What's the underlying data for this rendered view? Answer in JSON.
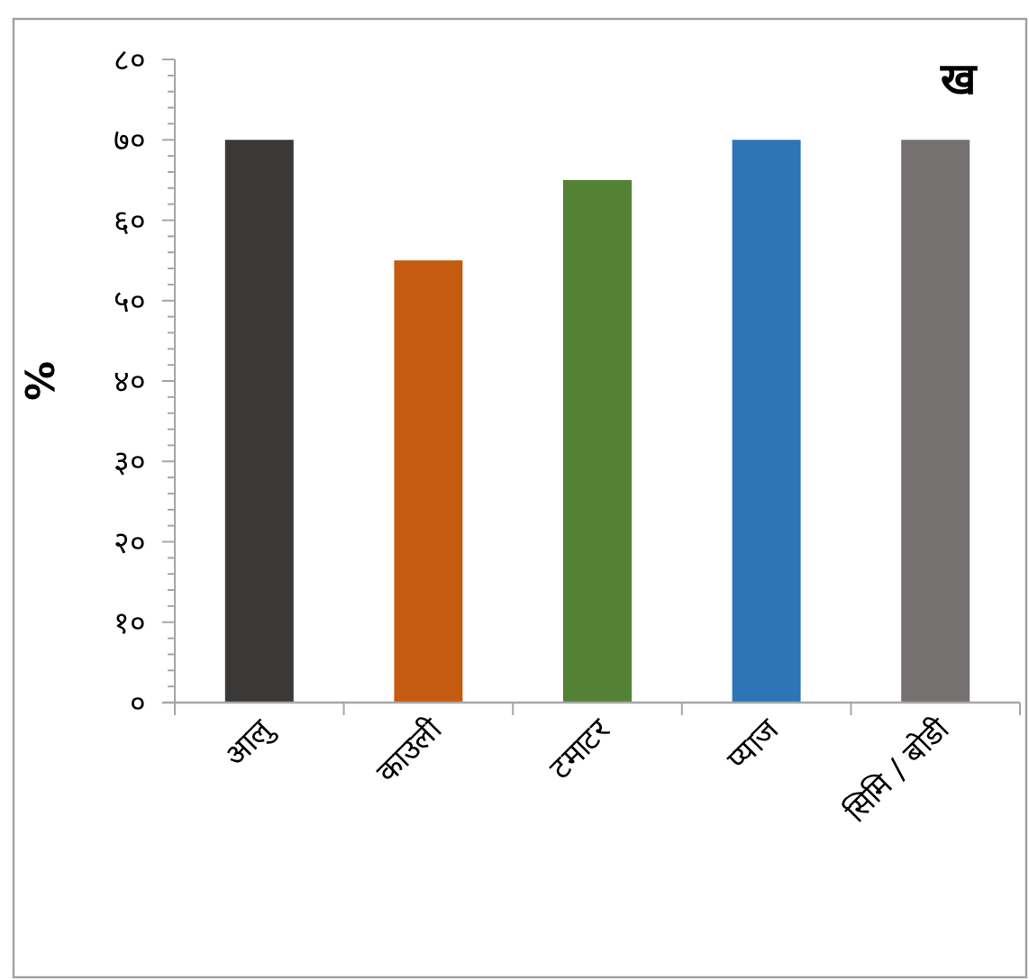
{
  "chart_data": {
    "type": "bar",
    "title": "ख",
    "ylabel": "%",
    "categories": [
      "आलु",
      "काउली",
      "टमाटर",
      "प्याज",
      "सिमि / बोडी"
    ],
    "values": [
      70,
      55,
      65,
      70,
      70
    ],
    "colors": [
      "#3a3937",
      "#c55a11",
      "#548235",
      "#2e75b6",
      "#767171"
    ],
    "ylim": [
      0,
      80
    ],
    "yticks": [
      {
        "value": 0,
        "label": "०"
      },
      {
        "value": 10,
        "label": "१०"
      },
      {
        "value": 20,
        "label": "२०"
      },
      {
        "value": 30,
        "label": "३०"
      },
      {
        "value": 40,
        "label": "४०"
      },
      {
        "value": 50,
        "label": "५०"
      },
      {
        "value": 60,
        "label": "६०"
      },
      {
        "value": 70,
        "label": "७०"
      },
      {
        "value": 80,
        "label": "८०"
      }
    ],
    "grid": false,
    "legend": false
  }
}
